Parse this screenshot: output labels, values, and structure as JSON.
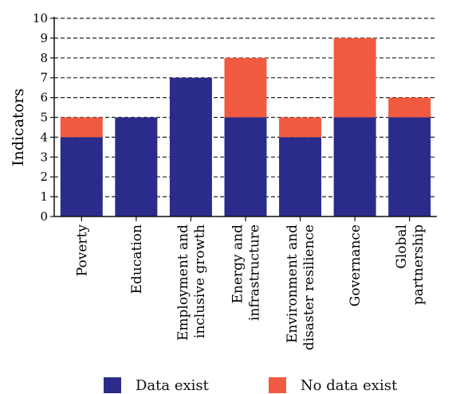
{
  "chart_data": {
    "type": "bar",
    "stacked": true,
    "categories": [
      [
        "Poverty"
      ],
      [
        "Education"
      ],
      [
        "Employment and",
        "inclusive growth"
      ],
      [
        "Energy and",
        "infrastructure"
      ],
      [
        "Environment and",
        "disaster resilience"
      ],
      [
        "Governance"
      ],
      [
        "Global",
        "partnership"
      ]
    ],
    "series": [
      {
        "name": "Data exist",
        "color": "#2b2b8c",
        "values": [
          4,
          5,
          7,
          5,
          4,
          5,
          5
        ]
      },
      {
        "name": "No data exist",
        "color": "#f05a40",
        "values": [
          1,
          0,
          0,
          3,
          1,
          4,
          1
        ]
      }
    ],
    "ylabel": "Indicators",
    "ylim": [
      0,
      10
    ],
    "yticks": [
      0,
      1,
      2,
      3,
      4,
      5,
      6,
      7,
      8,
      9,
      10
    ],
    "grid": "dashed-horizontal",
    "legend_position": "bottom"
  }
}
